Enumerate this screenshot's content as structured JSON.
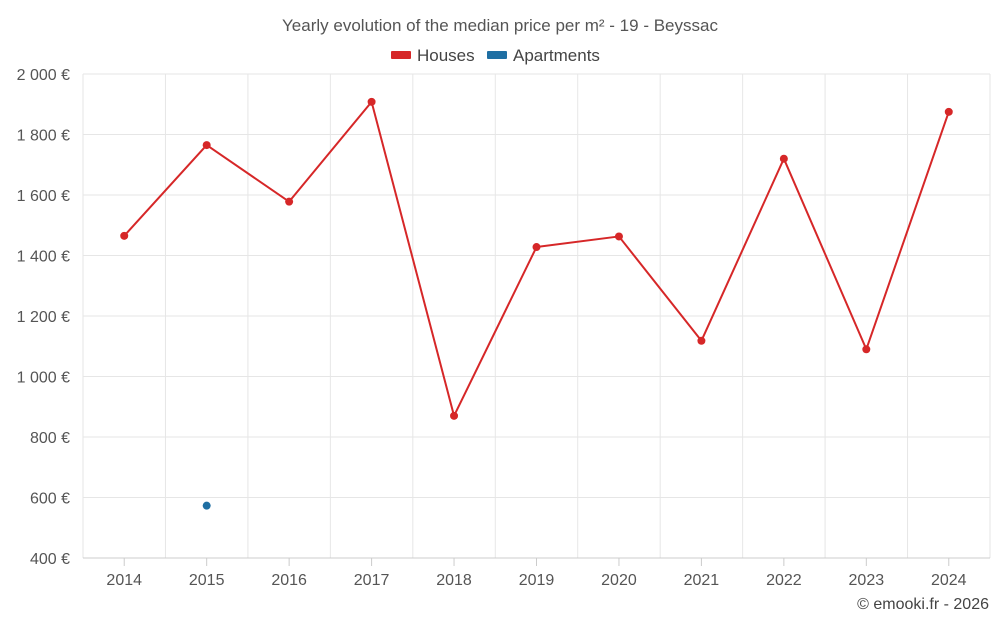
{
  "chart_data": {
    "type": "line",
    "title": "Yearly evolution of the median price per m² - 19 - Beyssac",
    "categories": [
      "2014",
      "2015",
      "2016",
      "2017",
      "2018",
      "2019",
      "2020",
      "2021",
      "2022",
      "2023",
      "2024"
    ],
    "series": [
      {
        "name": "Houses",
        "color": "#d62728",
        "values": [
          1465,
          1765,
          1578,
          1908,
          870,
          1428,
          1463,
          1118,
          1720,
          1090,
          1875
        ]
      },
      {
        "name": "Apartments",
        "color": "#1f6fa3",
        "values": [
          null,
          573,
          null,
          null,
          null,
          null,
          null,
          null,
          null,
          null,
          null
        ]
      }
    ],
    "ylim": [
      400,
      2000
    ],
    "yticks": [
      400,
      600,
      800,
      1000,
      1200,
      1400,
      1600,
      1800,
      2000
    ],
    "ytick_labels": [
      "400 €",
      "600 €",
      "800 €",
      "1 000 €",
      "1 200 €",
      "1 400 €",
      "1 600 €",
      "1 800 €",
      "2 000 €"
    ],
    "xlabel": "",
    "ylabel": "",
    "legend_position": "top-center",
    "grid": true
  },
  "credit": "© emooki.fr - 2026"
}
